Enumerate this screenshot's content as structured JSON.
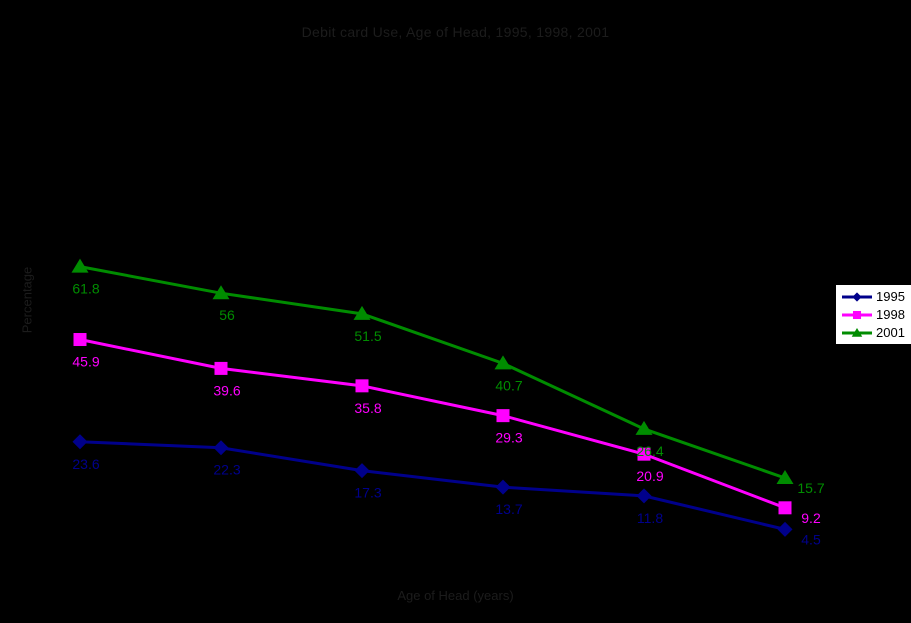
{
  "chart_data": {
    "type": "line",
    "title": "Debit card Use, Age of Head, 1995, 1998, 2001",
    "xlabel": "Age of Head (years)",
    "ylabel": "Percentage",
    "categories": [
      "",
      "",
      "",
      "",
      "",
      ""
    ],
    "x_tick_labels_visible": false,
    "y_tick_labels_visible": false,
    "ylim": [
      0,
      70
    ],
    "grid": false,
    "legend_position": "right",
    "series": [
      {
        "name": "1995",
        "color": "#00008B",
        "marker": "diamond",
        "values": [
          23.6,
          22.3,
          17.3,
          13.7,
          11.8,
          4.5
        ]
      },
      {
        "name": "1998",
        "color": "#FF00FF",
        "marker": "square",
        "values": [
          45.9,
          39.6,
          35.8,
          29.3,
          20.9,
          9.2
        ]
      },
      {
        "name": "2001",
        "color": "#008C00",
        "marker": "triangle",
        "values": [
          61.8,
          56,
          51.5,
          40.7,
          26.4,
          15.7
        ]
      }
    ],
    "colors": {
      "background": "#000000",
      "axis_text": "#1c1c1c",
      "legend_background": "#FFFFFF",
      "legend_border": "#000000",
      "legend_text": "#000000"
    }
  }
}
